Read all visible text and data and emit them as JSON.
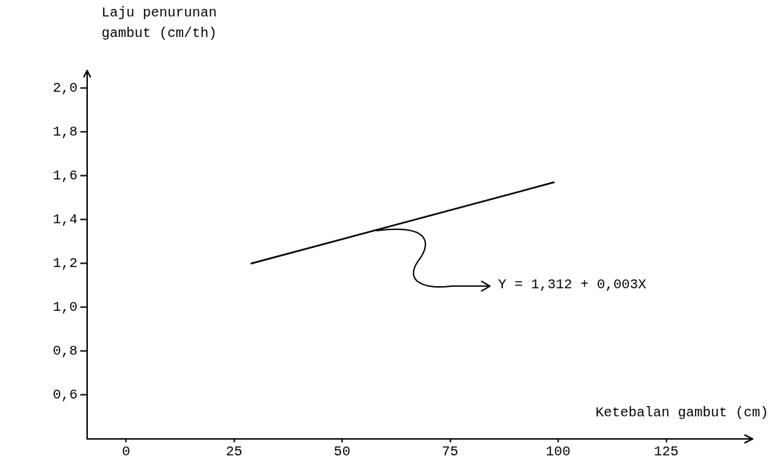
{
  "chart_data": {
    "type": "line",
    "ylabel": "Laju penurunan gambut (cm/th)",
    "xlabel": "Ketebalan gambut (cm)",
    "series": [
      {
        "color": "#000000",
        "x": [
          29,
          99
        ],
        "values": [
          1.2,
          1.57
        ]
      }
    ],
    "xlim": [
      -9,
      145
    ],
    "xticks": [
      0,
      25,
      50,
      75,
      100,
      125
    ],
    "ylim": [
      0.4,
      2.08
    ],
    "yticks": [
      {
        "value": 0.6,
        "label": "0,6"
      },
      {
        "value": 0.8,
        "label": "0,8"
      },
      {
        "value": 1.0,
        "label": "1,0"
      },
      {
        "value": 1.2,
        "label": "1,2"
      },
      {
        "value": 1.4,
        "label": "1,4"
      },
      {
        "value": 1.6,
        "label": "1,6"
      },
      {
        "value": 1.8,
        "label": "1,8"
      },
      {
        "value": 2.0,
        "label": "2,0"
      }
    ],
    "annotations": [
      {
        "text": "Y = 1,312 + 0,003X",
        "x": 58,
        "y": 1.35
      }
    ],
    "grid": false,
    "legend": false,
    "marker": "none",
    "line_style": "solid"
  }
}
